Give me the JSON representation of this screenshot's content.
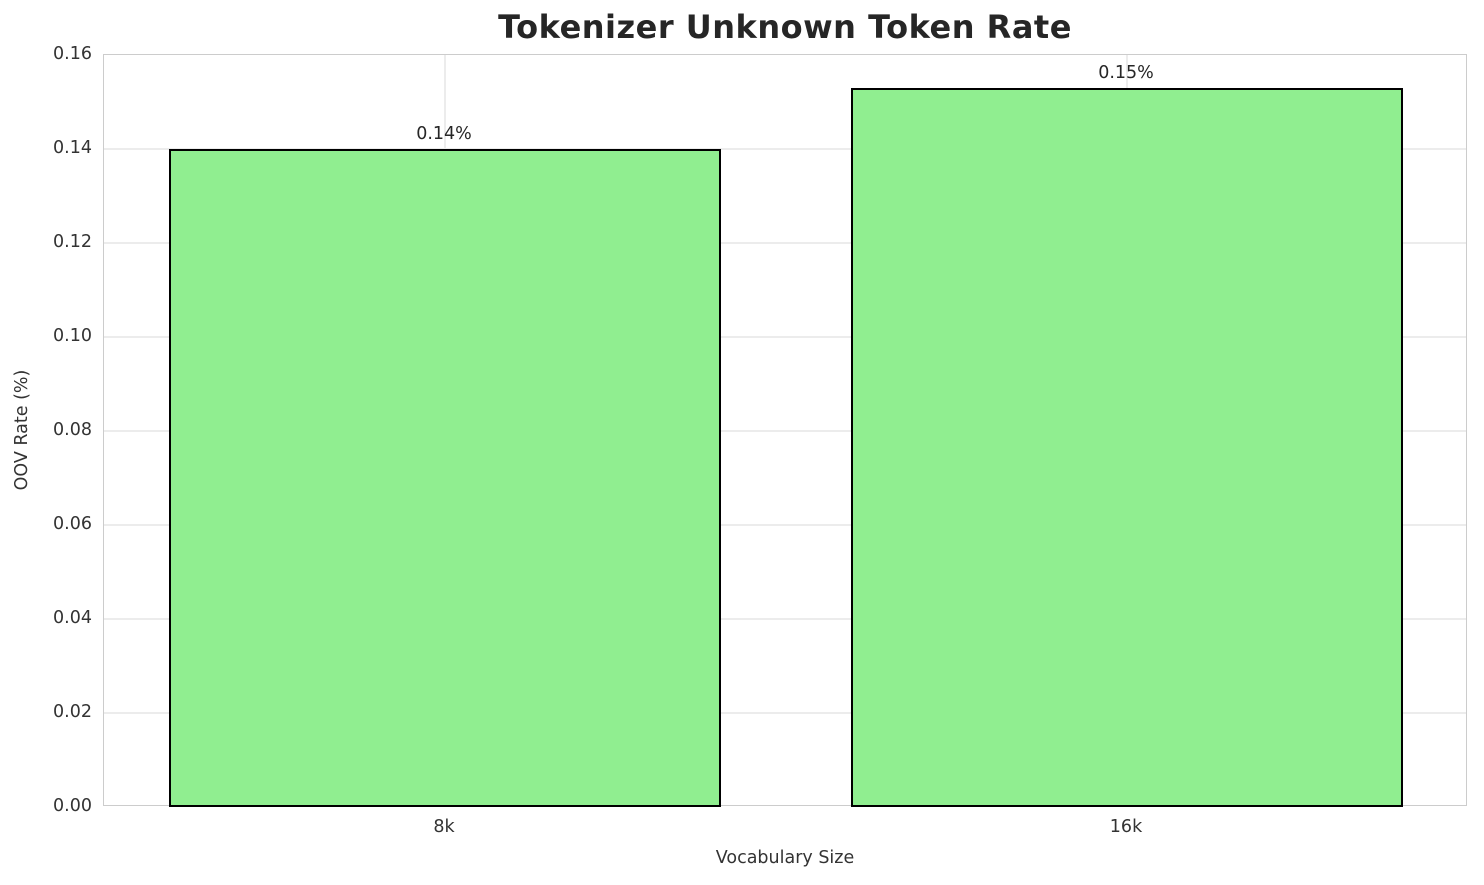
{
  "chart_data": {
    "type": "bar",
    "title": "Tokenizer Unknown Token Rate",
    "xlabel": "Vocabulary Size",
    "ylabel": "OOV Rate (%)",
    "categories": [
      "8k",
      "16k"
    ],
    "values": [
      0.14,
      0.153
    ],
    "bar_value_labels": [
      "0.14%",
      "0.15%"
    ],
    "ylim": [
      0,
      0.16
    ],
    "ytick_labels": [
      "0.00",
      "0.02",
      "0.04",
      "0.06",
      "0.08",
      "0.10",
      "0.12",
      "0.14",
      "0.16"
    ],
    "grid": true,
    "legend": "none",
    "bar_color": "#90EE90",
    "bar_edge_color": "#000000",
    "grid_color": "#ececec",
    "spine_color": "#cccccc",
    "title_color": "#262626",
    "tick_color": "#333333"
  }
}
